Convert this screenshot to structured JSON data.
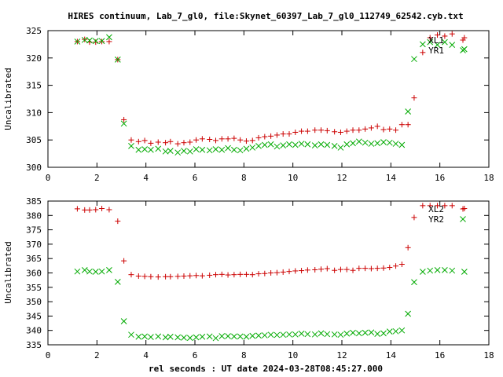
{
  "chart_data": [
    {
      "type": "scatter",
      "title": "HIRES continuum, Lab_7_gl0, file:Skynet_60397_Lab_7_gl0_112749_62542.cyb.txt",
      "ylabel": "Uncalibrated",
      "xlabel": "",
      "xlim": [
        0,
        18
      ],
      "ylim": [
        300,
        325
      ],
      "xticks": [
        0,
        2,
        4,
        6,
        8,
        10,
        12,
        14,
        16,
        18
      ],
      "yticks": [
        300,
        305,
        310,
        315,
        320,
        325
      ],
      "legend_placement": "top-right",
      "x": [
        1.2,
        1.5,
        1.7,
        1.95,
        2.2,
        2.5,
        2.85,
        3.1,
        3.4,
        3.7,
        3.95,
        4.2,
        4.5,
        4.8,
        5.0,
        5.3,
        5.55,
        5.8,
        6.05,
        6.3,
        6.6,
        6.85,
        7.1,
        7.35,
        7.6,
        7.85,
        8.1,
        8.35,
        8.6,
        8.85,
        9.1,
        9.35,
        9.6,
        9.85,
        10.1,
        10.35,
        10.6,
        10.9,
        11.15,
        11.4,
        11.7,
        11.95,
        12.2,
        12.45,
        12.7,
        12.95,
        13.2,
        13.45,
        13.7,
        13.95,
        14.2,
        14.45,
        14.7,
        14.95,
        15.3,
        15.6,
        15.9,
        16.2,
        16.5,
        17.0
      ],
      "series": [
        {
          "name": "XL1",
          "marker": "plus",
          "color": "#cc0000",
          "values": [
            323.0,
            323.4,
            322.9,
            322.9,
            323.0,
            323.0,
            319.7,
            308.7,
            305.0,
            304.7,
            304.9,
            304.4,
            304.6,
            304.5,
            304.7,
            304.3,
            304.5,
            304.6,
            305.0,
            305.2,
            305.1,
            304.9,
            305.2,
            305.2,
            305.3,
            305.0,
            304.8,
            304.9,
            305.4,
            305.6,
            305.7,
            305.9,
            306.1,
            306.1,
            306.4,
            306.6,
            306.6,
            306.8,
            306.8,
            306.7,
            306.5,
            306.4,
            306.6,
            306.8,
            306.8,
            307.0,
            307.2,
            307.5,
            306.9,
            307.0,
            306.8,
            307.8,
            307.8,
            312.7,
            321.0,
            323.7,
            324.2,
            324.0,
            324.4,
            323.7
          ]
        },
        {
          "name": "YR1",
          "marker": "cross",
          "color": "#00aa00",
          "values": [
            323.0,
            323.3,
            323.2,
            323.1,
            323.1,
            323.8,
            319.7,
            308.0,
            303.9,
            303.2,
            303.3,
            303.2,
            303.4,
            302.9,
            303.0,
            302.7,
            303.0,
            302.9,
            303.3,
            303.2,
            303.1,
            303.3,
            303.2,
            303.5,
            303.2,
            303.1,
            303.4,
            303.6,
            303.9,
            304.1,
            304.2,
            303.8,
            304.0,
            304.2,
            304.1,
            304.3,
            304.2,
            304.0,
            304.2,
            304.1,
            303.9,
            303.6,
            304.2,
            304.4,
            304.7,
            304.5,
            304.3,
            304.4,
            304.6,
            304.5,
            304.3,
            304.1,
            310.2,
            319.8,
            322.5,
            322.9,
            322.4,
            322.9,
            322.4,
            321.6
          ]
        }
      ]
    },
    {
      "type": "scatter",
      "title": "",
      "ylabel": "Uncalibrated",
      "xlabel": "rel seconds : UT date 2024-03-28T08:45:27.000",
      "xlim": [
        0,
        18
      ],
      "ylim": [
        335,
        385
      ],
      "xticks": [
        0,
        2,
        4,
        6,
        8,
        10,
        12,
        14,
        16,
        18
      ],
      "yticks": [
        335,
        340,
        345,
        350,
        355,
        360,
        365,
        370,
        375,
        380,
        385
      ],
      "legend_placement": "top-right",
      "x": [
        1.2,
        1.5,
        1.7,
        1.95,
        2.2,
        2.5,
        2.85,
        3.1,
        3.4,
        3.7,
        3.95,
        4.2,
        4.5,
        4.8,
        5.0,
        5.3,
        5.55,
        5.8,
        6.05,
        6.3,
        6.6,
        6.85,
        7.1,
        7.35,
        7.6,
        7.85,
        8.1,
        8.35,
        8.6,
        8.85,
        9.1,
        9.35,
        9.6,
        9.85,
        10.1,
        10.35,
        10.6,
        10.9,
        11.15,
        11.4,
        11.7,
        11.95,
        12.2,
        12.45,
        12.7,
        12.95,
        13.2,
        13.45,
        13.7,
        13.95,
        14.2,
        14.45,
        14.7,
        14.95,
        15.3,
        15.6,
        15.9,
        16.2,
        16.5,
        17.0
      ],
      "series": [
        {
          "name": "XL2",
          "marker": "plus",
          "color": "#cc0000",
          "values": [
            382.3,
            381.9,
            381.9,
            382.0,
            382.4,
            382.0,
            378.0,
            364.2,
            359.4,
            358.9,
            358.8,
            358.7,
            358.6,
            358.7,
            358.7,
            358.8,
            358.9,
            359.0,
            359.1,
            359.0,
            359.2,
            359.4,
            359.5,
            359.3,
            359.4,
            359.5,
            359.5,
            359.4,
            359.7,
            359.8,
            360.0,
            360.1,
            360.3,
            360.5,
            360.7,
            360.8,
            361.0,
            361.1,
            361.3,
            361.5,
            360.9,
            361.2,
            361.2,
            360.9,
            361.6,
            361.6,
            361.5,
            361.6,
            361.7,
            361.9,
            362.4,
            363.0,
            368.8,
            379.3,
            383.4,
            383.4,
            383.4,
            383.4,
            383.4,
            382.4
          ]
        },
        {
          "name": "YR2",
          "marker": "cross",
          "color": "#00aa00",
          "values": [
            360.5,
            361.0,
            360.5,
            360.4,
            360.5,
            361.0,
            356.9,
            343.2,
            338.5,
            337.8,
            337.9,
            337.7,
            337.9,
            337.6,
            337.8,
            337.6,
            337.5,
            337.4,
            337.6,
            337.8,
            337.9,
            337.3,
            338.0,
            338.0,
            337.9,
            337.9,
            337.8,
            338.1,
            338.2,
            338.3,
            338.5,
            338.4,
            338.5,
            338.6,
            338.6,
            338.9,
            338.7,
            338.6,
            339.0,
            338.7,
            338.6,
            338.5,
            338.9,
            339.2,
            339.0,
            339.2,
            339.3,
            338.8,
            339.0,
            339.6,
            339.7,
            340.0,
            345.8,
            356.8,
            360.4,
            360.8,
            361.0,
            361.0,
            360.8,
            360.4
          ]
        }
      ]
    }
  ]
}
